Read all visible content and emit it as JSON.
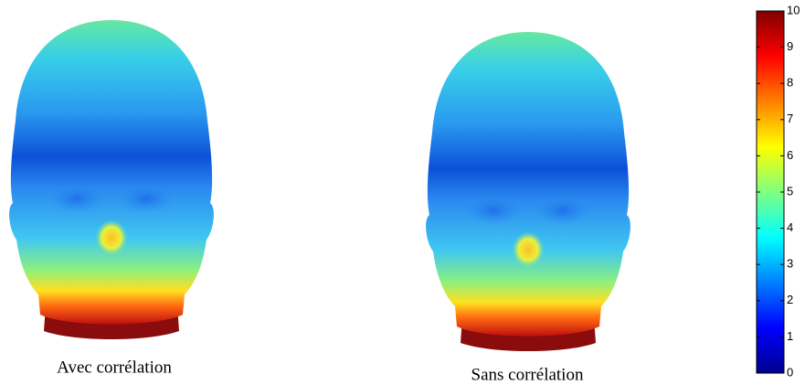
{
  "captions": [
    "Avec corrélation",
    "Sans corrélation"
  ],
  "colorbar": {
    "colormap": "jet",
    "lim": [
      0,
      10
    ],
    "ticks": [
      0,
      1,
      2,
      3,
      4,
      5,
      6,
      7,
      8,
      9,
      10
    ]
  }
}
